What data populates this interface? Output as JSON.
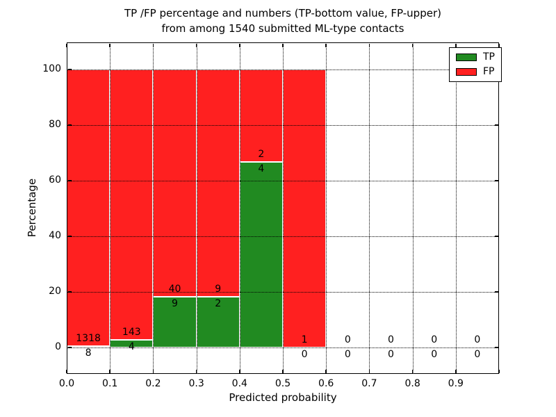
{
  "chart_data": {
    "type": "bar",
    "stacked": true,
    "title_line1": "TP /FP percentage and numbers (TP-bottom value, FP-upper)",
    "title_line2": "from among 1540 submitted ML-type contacts",
    "xlabel": "Predicted probability",
    "ylabel": "Percentage",
    "total_contacts": 1540,
    "xlim": [
      0.0,
      1.0
    ],
    "ylim": [
      -10,
      110
    ],
    "x_ticks": [
      "0.0",
      "0.1",
      "0.2",
      "0.3",
      "0.4",
      "0.5",
      "0.6",
      "0.7",
      "0.8",
      "0.9"
    ],
    "y_ticks": [
      0,
      20,
      40,
      60,
      80,
      100
    ],
    "grid_style": "dotted",
    "colors": {
      "tp": "#218a21",
      "fp": "#ff2020"
    },
    "legend": [
      {
        "label": "TP",
        "color": "#218a21"
      },
      {
        "label": "FP",
        "color": "#ff2020"
      }
    ],
    "legend_position": "upper right",
    "bins": [
      {
        "range": [
          0.0,
          0.1
        ],
        "tp": 8,
        "fp": 1318,
        "tp_pct": 0.6,
        "fp_pct": 99.4
      },
      {
        "range": [
          0.1,
          0.2
        ],
        "tp": 4,
        "fp": 143,
        "tp_pct": 2.7,
        "fp_pct": 97.3
      },
      {
        "range": [
          0.2,
          0.3
        ],
        "tp": 9,
        "fp": 40,
        "tp_pct": 18.4,
        "fp_pct": 81.6
      },
      {
        "range": [
          0.3,
          0.4
        ],
        "tp": 2,
        "fp": 9,
        "tp_pct": 18.2,
        "fp_pct": 81.8
      },
      {
        "range": [
          0.4,
          0.5
        ],
        "tp": 4,
        "fp": 2,
        "tp_pct": 66.7,
        "fp_pct": 33.3
      },
      {
        "range": [
          0.5,
          0.6
        ],
        "tp": 0,
        "fp": 1,
        "tp_pct": 0.0,
        "fp_pct": 100.0
      },
      {
        "range": [
          0.6,
          0.7
        ],
        "tp": 0,
        "fp": 0,
        "tp_pct": 0.0,
        "fp_pct": 0.0
      },
      {
        "range": [
          0.7,
          0.8
        ],
        "tp": 0,
        "fp": 0,
        "tp_pct": 0.0,
        "fp_pct": 0.0
      },
      {
        "range": [
          0.8,
          0.9
        ],
        "tp": 0,
        "fp": 0,
        "tp_pct": 0.0,
        "fp_pct": 0.0
      },
      {
        "range": [
          0.9,
          1.0
        ],
        "tp": 0,
        "fp": 0,
        "tp_pct": 0.0,
        "fp_pct": 0.0
      }
    ]
  }
}
